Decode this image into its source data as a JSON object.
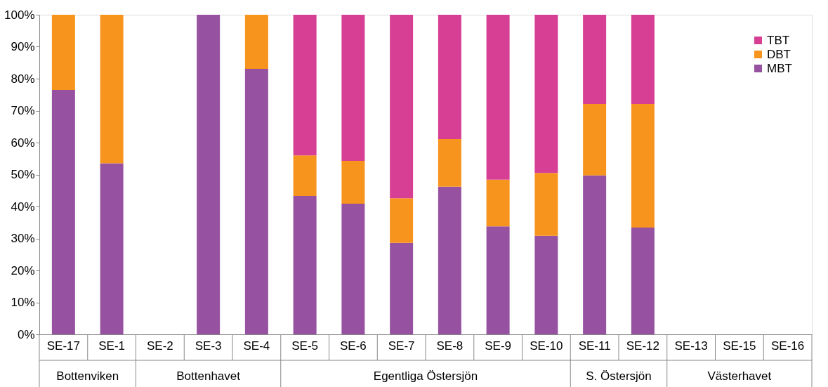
{
  "chart_data": {
    "type": "bar",
    "stacked": true,
    "categories": [
      "SE-17",
      "SE-1",
      "SE-2",
      "SE-3",
      "SE-4",
      "SE-5",
      "SE-6",
      "SE-7",
      "SE-8",
      "SE-9",
      "SE-10",
      "SE-11",
      "SE-12",
      "SE-13",
      "SE-15",
      "SE-16"
    ],
    "series": [
      {
        "name": "MBT",
        "color": "#9652a0",
        "values": [
          76.5,
          53.5,
          null,
          100,
          83.1,
          43.3,
          40.9,
          28.6,
          46.2,
          33.8,
          30.8,
          49.7,
          33.4,
          null,
          null,
          null
        ]
      },
      {
        "name": "DBT",
        "color": "#f7941d",
        "values": [
          23.5,
          46.5,
          null,
          0,
          16.9,
          12.7,
          13.4,
          14.0,
          14.9,
          14.6,
          19.7,
          22.4,
          38.7,
          null,
          null,
          null
        ]
      },
      {
        "name": "TBT",
        "color": "#d63f94",
        "values": [
          0,
          0,
          null,
          0,
          0,
          44.0,
          45.7,
          57.4,
          38.9,
          51.6,
          49.5,
          27.9,
          27.9,
          null,
          null,
          null
        ]
      }
    ],
    "ylim": [
      0,
      100
    ],
    "yticks": [
      {
        "value": 0,
        "label": "0%"
      },
      {
        "value": 10,
        "label": "10%"
      },
      {
        "value": 20,
        "label": "20%"
      },
      {
        "value": 30,
        "label": "30%"
      },
      {
        "value": 40,
        "label": "40%"
      },
      {
        "value": 50,
        "label": "50%"
      },
      {
        "value": 60,
        "label": "60%"
      },
      {
        "value": 70,
        "label": "70%"
      },
      {
        "value": 80,
        "label": "80%"
      },
      {
        "value": 90,
        "label": "90%"
      },
      {
        "value": 100,
        "label": "100%"
      }
    ],
    "grid": false,
    "legend": "top right",
    "annotations": [
      "Bottenviken",
      "Bottenhavet",
      "Egentliga Östersjön",
      "S. Östersjön",
      "Västerhavet"
    ]
  }
}
